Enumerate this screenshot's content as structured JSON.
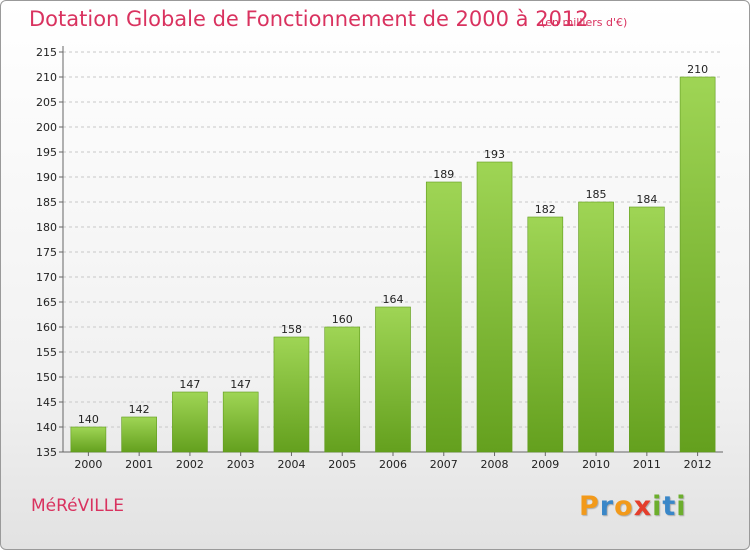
{
  "chart_data": {
    "type": "bar",
    "title": "Dotation Globale de Fonctionnement de 2000 à 2012",
    "subtitle": "(en milliers d'€)",
    "categories": [
      "2000",
      "2001",
      "2002",
      "2003",
      "2004",
      "2005",
      "2006",
      "2007",
      "2008",
      "2009",
      "2010",
      "2011",
      "2012"
    ],
    "values": [
      140,
      142,
      147,
      147,
      158,
      160,
      164,
      189,
      193,
      182,
      185,
      184,
      210
    ],
    "xlabel": "",
    "ylabel": "",
    "ylim": [
      135,
      215
    ],
    "yticks": [
      135,
      140,
      145,
      150,
      155,
      160,
      165,
      170,
      175,
      180,
      185,
      190,
      195,
      200,
      205,
      210,
      215
    ],
    "grid": "horizontal-dashed",
    "bar_color": "#7cbf32",
    "bar_color_light": "#9fd555"
  },
  "footer": {
    "commune": "MéRéVILLE",
    "logo_letters": [
      {
        "ch": "P",
        "color": "#f29a1b"
      },
      {
        "ch": "r",
        "color": "#3a87c8"
      },
      {
        "ch": "o",
        "color": "#f29a1b"
      },
      {
        "ch": "x",
        "color": "#e43e2c"
      },
      {
        "ch": "i",
        "color": "#6cae2d"
      },
      {
        "ch": "t",
        "color": "#3a87c8"
      },
      {
        "ch": "i",
        "color": "#6cae2d"
      }
    ]
  }
}
